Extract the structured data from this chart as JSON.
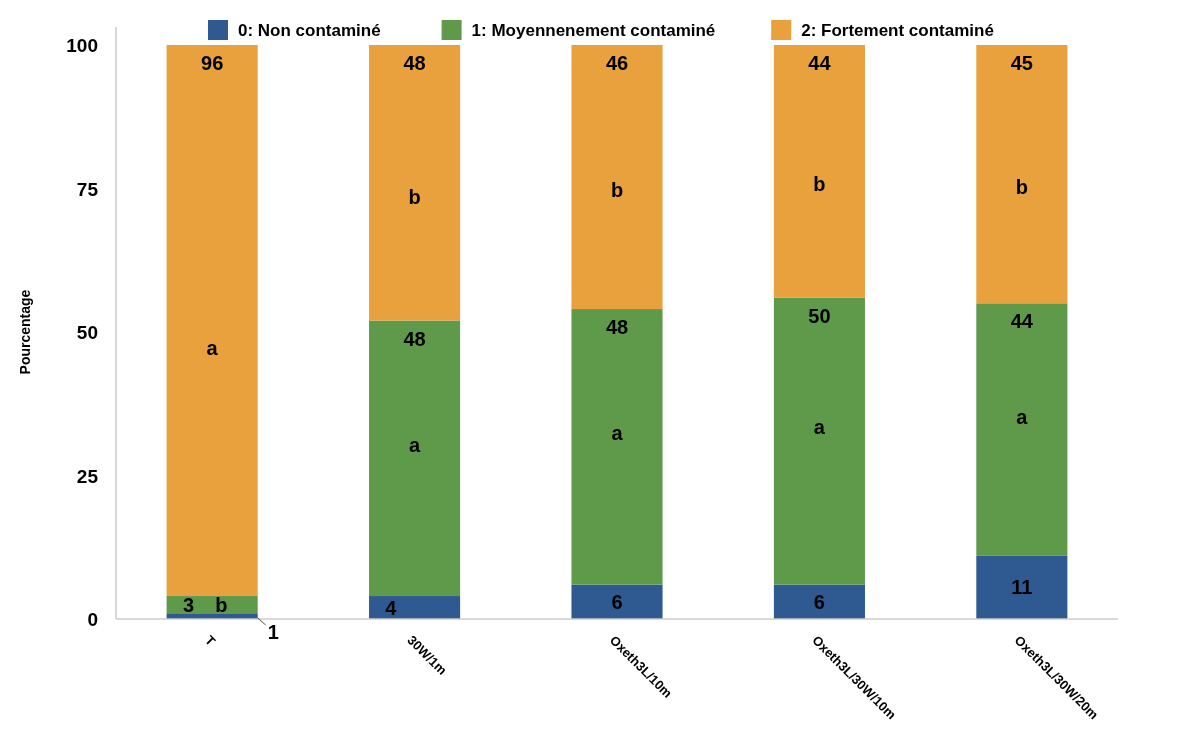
{
  "chart_data": {
    "type": "bar",
    "stacked": true,
    "ylabel": "Pourcentage",
    "categories": [
      "T",
      "30W/1m",
      "Oxeth3L/10m",
      "Oxeth3L/30W/10m",
      "Oxeth3L/30W/20m"
    ],
    "series": [
      {
        "name": "0: Non contaminé",
        "color": "#2e5a91",
        "values": [
          1,
          4,
          6,
          6,
          11
        ]
      },
      {
        "name": "1: Moyennenement contaminé",
        "color": "#5f9a4b",
        "values": [
          3,
          48,
          48,
          50,
          44
        ]
      },
      {
        "name": "2: Fortement contaminé",
        "color": "#e8a13d",
        "values": [
          96,
          48,
          46,
          44,
          45
        ]
      }
    ],
    "ylim": [
      0,
      100
    ],
    "yticks": [
      0,
      25,
      50,
      75,
      100
    ],
    "data_labels": true,
    "legend": "top",
    "grid": false,
    "annotations": [
      "a",
      "b",
      "b",
      "a",
      "b",
      "a",
      "b",
      "a",
      "b",
      "a"
    ]
  }
}
